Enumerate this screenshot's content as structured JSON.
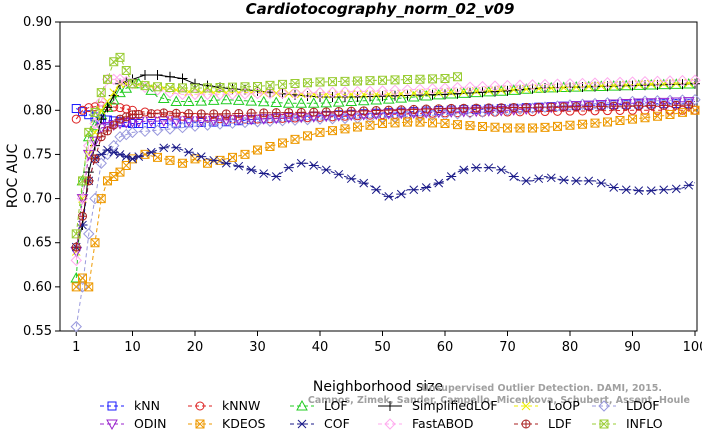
{
  "chart_data": {
    "type": "line",
    "title": "Cardiotocography_norm_02_v09",
    "xlabel": "Neighborhood size",
    "ylabel": "ROC AUC",
    "xlim": [
      0,
      100
    ],
    "ylim": [
      0.55,
      0.9
    ],
    "xticks": [
      1,
      10,
      20,
      30,
      40,
      50,
      60,
      70,
      80,
      90,
      100
    ],
    "yticks": [
      0.55,
      0.6,
      0.65,
      0.7,
      0.75,
      0.8,
      0.85,
      0.9
    ],
    "ytick_labels": [
      "0.55",
      "0.60",
      "0.65",
      "0.70",
      "0.75",
      "0.80",
      "0.85",
      "0.90"
    ],
    "grid": false,
    "legend_position": "bottom",
    "watermark": [
      "Unsupervised Outlier Detection. DAMI, 2015.",
      "Campos, Zimek, Sander, Campello, Micenkova, Schubert, Assent, Houle"
    ],
    "series": [
      {
        "name": "kNN",
        "color": "#1a1aff",
        "dash": "4,3",
        "marker": "square",
        "points": [
          [
            1,
            0.802
          ],
          [
            3,
            0.795
          ],
          [
            5,
            0.79
          ],
          [
            8,
            0.787
          ],
          [
            10,
            0.785
          ],
          [
            15,
            0.785
          ],
          [
            20,
            0.786
          ],
          [
            25,
            0.787
          ],
          [
            30,
            0.79
          ],
          [
            40,
            0.794
          ],
          [
            50,
            0.797
          ],
          [
            60,
            0.8
          ],
          [
            70,
            0.802
          ],
          [
            80,
            0.805
          ],
          [
            90,
            0.807
          ],
          [
            100,
            0.808
          ]
        ]
      },
      {
        "name": "kNNW",
        "color": "#dd2222",
        "dash": "4,3",
        "marker": "circle",
        "points": [
          [
            1,
            0.79
          ],
          [
            2,
            0.8
          ],
          [
            3,
            0.803
          ],
          [
            5,
            0.805
          ],
          [
            8,
            0.803
          ],
          [
            10,
            0.8
          ],
          [
            15,
            0.795
          ],
          [
            20,
            0.792
          ],
          [
            25,
            0.79
          ],
          [
            30,
            0.79
          ],
          [
            40,
            0.792
          ],
          [
            50,
            0.795
          ],
          [
            60,
            0.797
          ],
          [
            70,
            0.798
          ],
          [
            80,
            0.799
          ],
          [
            90,
            0.8
          ],
          [
            100,
            0.8
          ]
        ]
      },
      {
        "name": "LOF",
        "color": "#22cc22",
        "dash": "4,3",
        "marker": "triangle",
        "points": [
          [
            1,
            0.61
          ],
          [
            2,
            0.72
          ],
          [
            3,
            0.77
          ],
          [
            5,
            0.795
          ],
          [
            8,
            0.82
          ],
          [
            10,
            0.83
          ],
          [
            12,
            0.83
          ],
          [
            14,
            0.815
          ],
          [
            17,
            0.81
          ],
          [
            20,
            0.81
          ],
          [
            25,
            0.812
          ],
          [
            30,
            0.81
          ],
          [
            35,
            0.808
          ],
          [
            40,
            0.808
          ],
          [
            45,
            0.81
          ],
          [
            50,
            0.812
          ],
          [
            55,
            0.815
          ],
          [
            60,
            0.818
          ],
          [
            65,
            0.82
          ],
          [
            70,
            0.822
          ],
          [
            75,
            0.825
          ],
          [
            80,
            0.826
          ],
          [
            85,
            0.827
          ],
          [
            90,
            0.828
          ],
          [
            95,
            0.829
          ],
          [
            100,
            0.83
          ]
        ]
      },
      {
        "name": "SimplifiedLOF",
        "color": "#000000",
        "dash": "",
        "marker": "plus",
        "points": [
          [
            1,
            0.645
          ],
          [
            2,
            0.67
          ],
          [
            3,
            0.73
          ],
          [
            5,
            0.79
          ],
          [
            8,
            0.83
          ],
          [
            10,
            0.835
          ],
          [
            12,
            0.84
          ],
          [
            14,
            0.84
          ],
          [
            16,
            0.838
          ],
          [
            18,
            0.836
          ],
          [
            20,
            0.83
          ],
          [
            25,
            0.825
          ],
          [
            30,
            0.822
          ],
          [
            35,
            0.818
          ],
          [
            40,
            0.815
          ],
          [
            45,
            0.815
          ],
          [
            50,
            0.816
          ],
          [
            55,
            0.817
          ],
          [
            60,
            0.818
          ],
          [
            65,
            0.82
          ],
          [
            70,
            0.822
          ],
          [
            75,
            0.825
          ],
          [
            80,
            0.826
          ],
          [
            85,
            0.827
          ],
          [
            90,
            0.828
          ],
          [
            95,
            0.829
          ],
          [
            100,
            0.83
          ]
        ]
      },
      {
        "name": "LoOP",
        "color": "#eeee00",
        "dash": "4,3",
        "marker": "x",
        "points": [
          [
            1,
            0.64
          ],
          [
            2,
            0.7
          ],
          [
            3,
            0.75
          ],
          [
            5,
            0.8
          ],
          [
            8,
            0.83
          ],
          [
            10,
            0.83
          ],
          [
            12,
            0.828
          ],
          [
            15,
            0.825
          ],
          [
            20,
            0.82
          ],
          [
            25,
            0.82
          ],
          [
            30,
            0.82
          ],
          [
            40,
            0.818
          ],
          [
            50,
            0.818
          ],
          [
            60,
            0.82
          ],
          [
            70,
            0.823
          ],
          [
            80,
            0.826
          ],
          [
            90,
            0.829
          ],
          [
            100,
            0.831
          ]
        ]
      },
      {
        "name": "LDOF",
        "color": "#9999dd",
        "dash": "4,3",
        "marker": "diamond",
        "points": [
          [
            1,
            0.555
          ],
          [
            2,
            0.6
          ],
          [
            3,
            0.66
          ],
          [
            5,
            0.74
          ],
          [
            8,
            0.77
          ],
          [
            10,
            0.775
          ],
          [
            15,
            0.778
          ],
          [
            20,
            0.782
          ],
          [
            25,
            0.785
          ],
          [
            30,
            0.787
          ],
          [
            40,
            0.79
          ],
          [
            50,
            0.792
          ],
          [
            60,
            0.795
          ],
          [
            70,
            0.8
          ],
          [
            80,
            0.806
          ],
          [
            90,
            0.81
          ],
          [
            100,
            0.812
          ]
        ]
      },
      {
        "name": "ODIN",
        "color": "#9922cc",
        "dash": "4,3",
        "marker": "invtriangle",
        "points": [
          [
            1,
            0.64
          ],
          [
            2,
            0.7
          ],
          [
            3,
            0.75
          ],
          [
            5,
            0.78
          ],
          [
            8,
            0.785
          ],
          [
            10,
            0.787
          ],
          [
            15,
            0.788
          ],
          [
            20,
            0.788
          ],
          [
            25,
            0.789
          ],
          [
            30,
            0.79
          ],
          [
            40,
            0.793
          ],
          [
            50,
            0.796
          ],
          [
            60,
            0.798
          ],
          [
            70,
            0.8
          ],
          [
            80,
            0.805
          ],
          [
            90,
            0.808
          ],
          [
            100,
            0.81
          ]
        ]
      },
      {
        "name": "KDEOS",
        "color": "#ee9900",
        "dash": "4,3",
        "marker": "squarex",
        "points": [
          [
            1,
            0.6
          ],
          [
            2,
            0.61
          ],
          [
            3,
            0.6
          ],
          [
            4,
            0.65
          ],
          [
            5,
            0.7
          ],
          [
            6,
            0.72
          ],
          [
            8,
            0.73
          ],
          [
            10,
            0.745
          ],
          [
            12,
            0.75
          ],
          [
            15,
            0.745
          ],
          [
            18,
            0.74
          ],
          [
            20,
            0.745
          ],
          [
            22,
            0.74
          ],
          [
            25,
            0.745
          ],
          [
            28,
            0.75
          ],
          [
            30,
            0.755
          ],
          [
            35,
            0.765
          ],
          [
            40,
            0.775
          ],
          [
            45,
            0.78
          ],
          [
            50,
            0.785
          ],
          [
            55,
            0.787
          ],
          [
            60,
            0.785
          ],
          [
            65,
            0.782
          ],
          [
            70,
            0.78
          ],
          [
            75,
            0.78
          ],
          [
            80,
            0.783
          ],
          [
            85,
            0.786
          ],
          [
            90,
            0.79
          ],
          [
            95,
            0.794
          ],
          [
            100,
            0.8
          ]
        ]
      },
      {
        "name": "COF",
        "color": "#1a1a88",
        "dash": "4,3",
        "marker": "asterisk",
        "points": [
          [
            1,
            0.645
          ],
          [
            2,
            0.67
          ],
          [
            3,
            0.72
          ],
          [
            4,
            0.745
          ],
          [
            6,
            0.755
          ],
          [
            8,
            0.75
          ],
          [
            10,
            0.745
          ],
          [
            12,
            0.75
          ],
          [
            14,
            0.755
          ],
          [
            16,
            0.76
          ],
          [
            18,
            0.755
          ],
          [
            20,
            0.75
          ],
          [
            22,
            0.745
          ],
          [
            25,
            0.74
          ],
          [
            28,
            0.735
          ],
          [
            30,
            0.73
          ],
          [
            33,
            0.725
          ],
          [
            36,
            0.74
          ],
          [
            38,
            0.74
          ],
          [
            40,
            0.735
          ],
          [
            42,
            0.73
          ],
          [
            44,
            0.725
          ],
          [
            46,
            0.72
          ],
          [
            48,
            0.715
          ],
          [
            50,
            0.705
          ],
          [
            52,
            0.7
          ],
          [
            54,
            0.71
          ],
          [
            56,
            0.71
          ],
          [
            58,
            0.715
          ],
          [
            60,
            0.72
          ],
          [
            62,
            0.73
          ],
          [
            64,
            0.735
          ],
          [
            66,
            0.735
          ],
          [
            68,
            0.735
          ],
          [
            70,
            0.73
          ],
          [
            72,
            0.72
          ],
          [
            74,
            0.72
          ],
          [
            76,
            0.725
          ],
          [
            78,
            0.722
          ],
          [
            80,
            0.72
          ],
          [
            82,
            0.72
          ],
          [
            84,
            0.72
          ],
          [
            86,
            0.715
          ],
          [
            88,
            0.71
          ],
          [
            90,
            0.71
          ],
          [
            92,
            0.708
          ],
          [
            94,
            0.71
          ],
          [
            96,
            0.71
          ],
          [
            98,
            0.712
          ],
          [
            100,
            0.718
          ]
        ]
      },
      {
        "name": "FastABOD",
        "color": "#ffaaee",
        "dash": "4,3",
        "marker": "diamond",
        "points": [
          [
            1,
            0.63
          ],
          [
            2,
            0.7
          ],
          [
            3,
            0.76
          ],
          [
            5,
            0.81
          ],
          [
            6,
            0.835
          ],
          [
            8,
            0.835
          ],
          [
            10,
            0.83
          ],
          [
            12,
            0.826
          ],
          [
            14,
            0.823
          ],
          [
            16,
            0.82
          ],
          [
            18,
            0.818
          ],
          [
            20,
            0.818
          ],
          [
            25,
            0.818
          ],
          [
            30,
            0.819
          ],
          [
            40,
            0.82
          ],
          [
            50,
            0.822
          ],
          [
            60,
            0.825
          ],
          [
            70,
            0.828
          ],
          [
            80,
            0.83
          ],
          [
            90,
            0.832
          ],
          [
            100,
            0.834
          ]
        ]
      },
      {
        "name": "LDF",
        "color": "#aa2222",
        "dash": "4,3",
        "marker": "circleplus",
        "points": [
          [
            1,
            0.645
          ],
          [
            2,
            0.68
          ],
          [
            3,
            0.72
          ],
          [
            5,
            0.77
          ],
          [
            8,
            0.79
          ],
          [
            10,
            0.795
          ],
          [
            15,
            0.797
          ],
          [
            20,
            0.796
          ],
          [
            25,
            0.796
          ],
          [
            30,
            0.797
          ],
          [
            40,
            0.798
          ],
          [
            50,
            0.8
          ],
          [
            60,
            0.802
          ],
          [
            70,
            0.803
          ],
          [
            80,
            0.804
          ],
          [
            90,
            0.805
          ],
          [
            100,
            0.806
          ]
        ]
      },
      {
        "name": "INFLO",
        "color": "#99cc33",
        "dash": "4,3",
        "marker": "hourglass",
        "points": [
          [
            1,
            0.66
          ],
          [
            2,
            0.72
          ],
          [
            3,
            0.775
          ],
          [
            5,
            0.82
          ],
          [
            6,
            0.835
          ],
          [
            7,
            0.855
          ],
          [
            8,
            0.86
          ],
          [
            10,
            0.83
          ],
          [
            12,
            0.828
          ],
          [
            15,
            0.826
          ],
          [
            20,
            0.825
          ],
          [
            25,
            0.826
          ],
          [
            30,
            0.827
          ],
          [
            35,
            0.83
          ],
          [
            40,
            0.832
          ],
          [
            45,
            0.833
          ],
          [
            50,
            0.834
          ],
          [
            55,
            0.835
          ],
          [
            60,
            0.836
          ],
          [
            62,
            0.838
          ]
        ]
      }
    ]
  }
}
